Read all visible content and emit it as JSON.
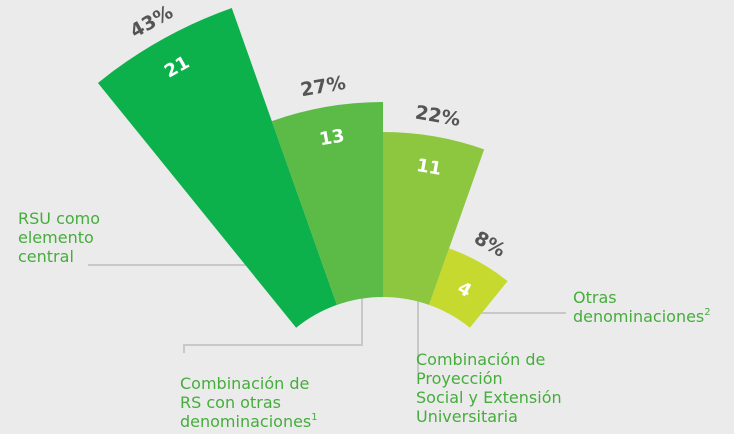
{
  "chart_data": {
    "type": "polar-area",
    "categories": [
      [
        "RSU como",
        "elemento",
        "central"
      ],
      [
        "Combinación de",
        "RS con otras",
        "denominaciones"
      ],
      [
        "Combinación de",
        "Proyección",
        "Social y Extensión",
        "Universitaria"
      ],
      [
        "Otras",
        "denominaciones"
      ]
    ],
    "footnotes": [
      null,
      "1",
      null,
      "2"
    ],
    "values": [
      21,
      13,
      11,
      4
    ],
    "percentages": [
      43,
      27,
      22,
      8
    ],
    "percentage_labels": [
      "43%",
      "27%",
      "22%",
      "8%"
    ],
    "colors": [
      "#0db14b",
      "#5bbb46",
      "#8dc63f",
      "#c6d92e"
    ]
  }
}
